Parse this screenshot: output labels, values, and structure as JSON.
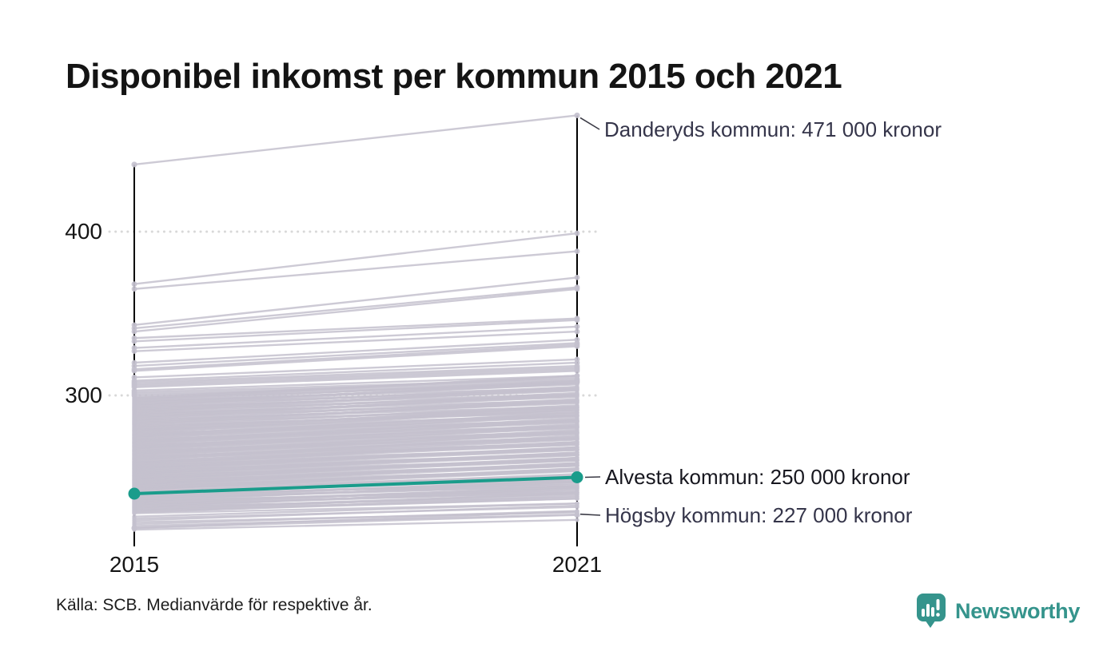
{
  "title": "Disponibel inkomst per kommun 2015 och 2021",
  "annotations": {
    "top": "Danderyds kommun: 471 000 kronor",
    "highlight": "Alvesta kommun: 250 000 kronor",
    "bottom": "Högsby kommun: 227 000 kronor"
  },
  "source": "Källa: SCB. Medianvärde för respektive år.",
  "brand": {
    "name": "Newsworthy",
    "icon": "bar-chart-speech-bubble-icon"
  },
  "colors": {
    "background": "#ffffff",
    "line_gray": "#c4c1ce",
    "highlight_green": "#1a9c8b",
    "grid_dot": "#d8d8d8",
    "axis_black": "#000000",
    "annotation_text": "#35354a",
    "leader_line": "#3a3a45",
    "brand_teal": "#35948c"
  },
  "chart_data": {
    "type": "slope",
    "title": "Disponibel inkomst per kommun 2015 och 2021",
    "x_categories": [
      "2015",
      "2021"
    ],
    "y_tick_labels": [
      "400",
      "300"
    ],
    "y_gridlines": [
      400,
      300
    ],
    "ylim_approx": [
      215,
      480
    ],
    "legend": "none",
    "series": [
      {
        "name": "Danderyds kommun",
        "values": [
          441,
          471
        ],
        "role": "annotated_top"
      },
      {
        "name": "Alvesta kommun",
        "values": [
          240,
          250
        ],
        "role": "highlighted"
      },
      {
        "name": "Högsby kommun",
        "values": [
          219,
          227
        ],
        "role": "annotated_bottom"
      }
    ],
    "background_lines_estimated": [
      [
        368,
        399
      ],
      [
        365,
        388
      ],
      [
        343,
        372
      ],
      [
        341,
        366
      ],
      [
        339,
        365
      ],
      [
        335,
        347
      ],
      [
        333,
        346
      ],
      [
        329,
        342
      ],
      [
        327,
        339
      ],
      [
        320,
        334
      ],
      [
        318,
        332
      ],
      [
        316,
        331
      ],
      [
        315,
        330
      ],
      [
        311,
        322
      ],
      [
        309,
        320
      ],
      [
        308,
        318
      ],
      [
        307,
        317
      ],
      [
        306,
        316
      ],
      [
        305,
        315
      ],
      [
        303,
        312
      ],
      [
        302,
        310
      ],
      [
        301,
        309
      ],
      [
        300,
        308
      ]
    ],
    "background_bands_estimated": [
      {
        "start": 299,
        "end": 280.5,
        "count": 40,
        "deltas": [
          12,
          9,
          14,
          10,
          15,
          8,
          13,
          11
        ]
      },
      {
        "start": 280,
        "end": 260.5,
        "count": 45,
        "deltas": [
          11,
          13,
          9,
          12,
          15,
          10,
          14,
          8
        ]
      },
      {
        "start": 260,
        "end": 242.3,
        "count": 45,
        "deltas": [
          10,
          12,
          8,
          11,
          13,
          9,
          14,
          10
        ]
      },
      {
        "start": 242,
        "end": 228,
        "count": 30,
        "deltas": [
          9,
          7,
          11,
          8,
          10,
          6,
          12,
          9
        ]
      },
      {
        "start": 226,
        "end": 218,
        "count": 8,
        "deltas": [
          8,
          7,
          9,
          6,
          8,
          7,
          10,
          6
        ]
      }
    ]
  }
}
